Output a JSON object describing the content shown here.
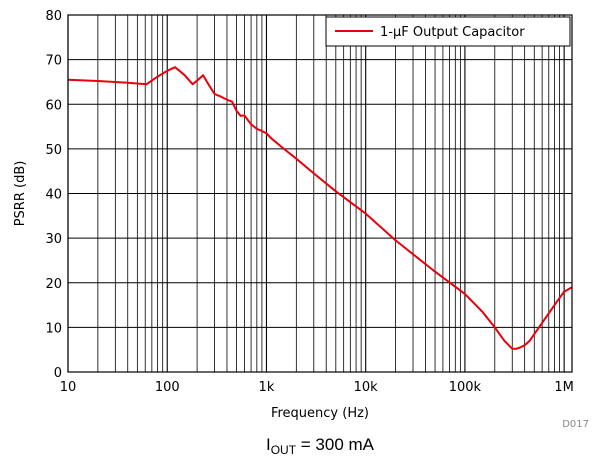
{
  "chart_data": {
    "type": "line",
    "xscale": "log",
    "xlim": [
      10,
      1200000
    ],
    "ylim": [
      0,
      80
    ],
    "x_ticks": [
      10,
      100,
      1000,
      10000,
      100000,
      1000000
    ],
    "x_tick_labels": [
      "10",
      "100",
      "1k",
      "10k",
      "100k",
      "1M"
    ],
    "y_ticks": [
      0,
      10,
      20,
      30,
      40,
      50,
      60,
      70,
      80
    ],
    "y_tick_labels": [
      "0",
      "10",
      "20",
      "30",
      "40",
      "50",
      "60",
      "70",
      "80"
    ],
    "xlabel": "Frequency (Hz)",
    "ylabel": "PSRR (dB)",
    "grid": true,
    "legend_position": "top-right",
    "series": [
      {
        "name": "1-µF Output Capacitor",
        "color": "#e8000b",
        "x": [
          10,
          20,
          40,
          62,
          80,
          100,
          120,
          150,
          180,
          200,
          230,
          260,
          300,
          350,
          400,
          450,
          500,
          550,
          600,
          700,
          800,
          900,
          1000,
          1100,
          1200,
          1500,
          2000,
          3000,
          5000,
          10000,
          20000,
          50000,
          100000,
          150000,
          200000,
          250000,
          300000,
          330000,
          360000,
          400000,
          450000,
          500000,
          600000,
          800000,
          1000000,
          1200000
        ],
        "y": [
          65.5,
          65.2,
          64.8,
          64.5,
          66.2,
          67.5,
          68.3,
          66.5,
          64.5,
          65.3,
          66.5,
          64.5,
          62.3,
          61.7,
          61,
          60.6,
          58.5,
          57.4,
          57.5,
          55.5,
          54.5,
          54,
          53.5,
          52.5,
          51.8,
          50,
          47.8,
          44.5,
          40.5,
          35.5,
          29.5,
          22.5,
          17.5,
          13.5,
          10,
          7,
          5.2,
          5.2,
          5.5,
          6,
          7,
          8.5,
          11,
          15,
          18,
          19
        ]
      }
    ]
  },
  "figure_code": "D017",
  "caption": {
    "main": "I",
    "sub": "OUT",
    "rest": " = 300 mA"
  }
}
